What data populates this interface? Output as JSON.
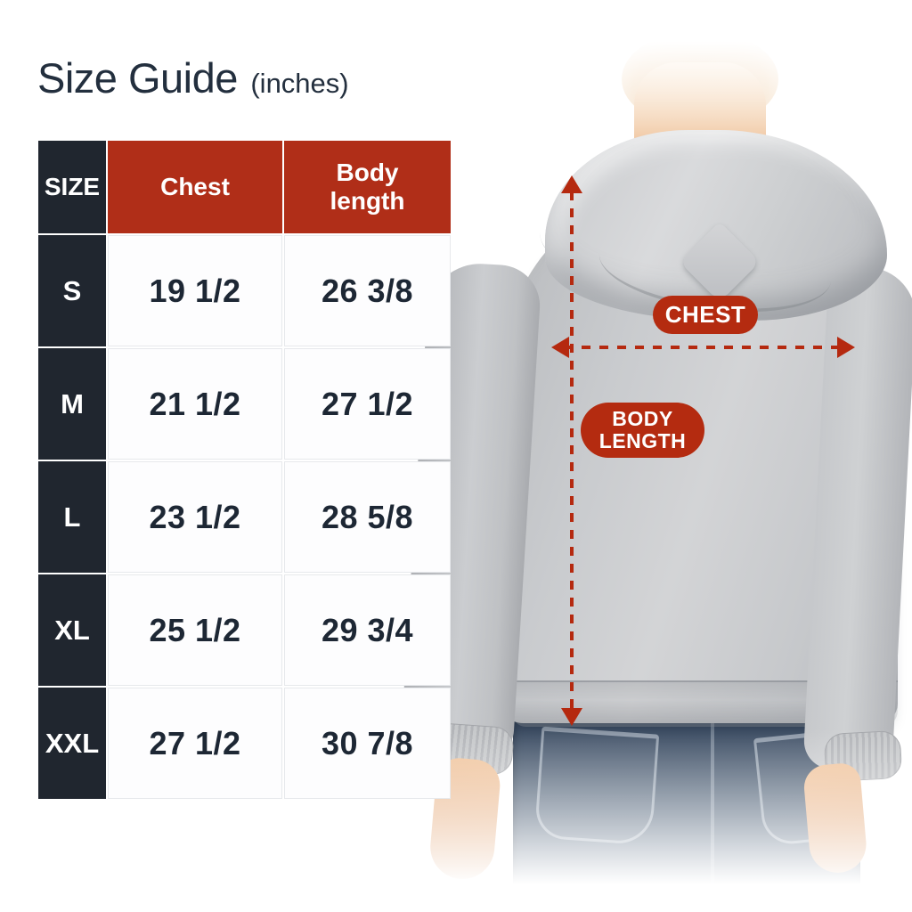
{
  "title": {
    "text": "Size Guide",
    "unit_suffix": "(inches)"
  },
  "size_table": {
    "columns": [
      "SIZE",
      "Chest",
      "Body length"
    ],
    "rows": [
      {
        "size": "S",
        "chest": "19 1/2",
        "body_length": "26 3/8"
      },
      {
        "size": "M",
        "chest": "21 1/2",
        "body_length": "27 1/2"
      },
      {
        "size": "L",
        "chest": "23 1/2",
        "body_length": "28 5/8"
      },
      {
        "size": "XL",
        "chest": "25 1/2",
        "body_length": "29 3/4"
      },
      {
        "size": "XXL",
        "chest": "27 1/2",
        "body_length": "30 7/8"
      }
    ]
  },
  "measurement_labels": {
    "chest": "CHEST",
    "body_length": "BODY LENGTH"
  },
  "icons": {
    "chest_arrow": "horizontal-dashed-double-arrow",
    "body_length_arrow": "vertical-dashed-double-arrow"
  },
  "colors": {
    "accent_red": "#b02e18",
    "annotation_red": "#b5290f",
    "table_header_dark": "#20262f",
    "title_navy": "#232f3e",
    "value_navy": "#1d2734",
    "hoodie_grey": "#c9cbce",
    "denim_blue": "#46586e"
  }
}
